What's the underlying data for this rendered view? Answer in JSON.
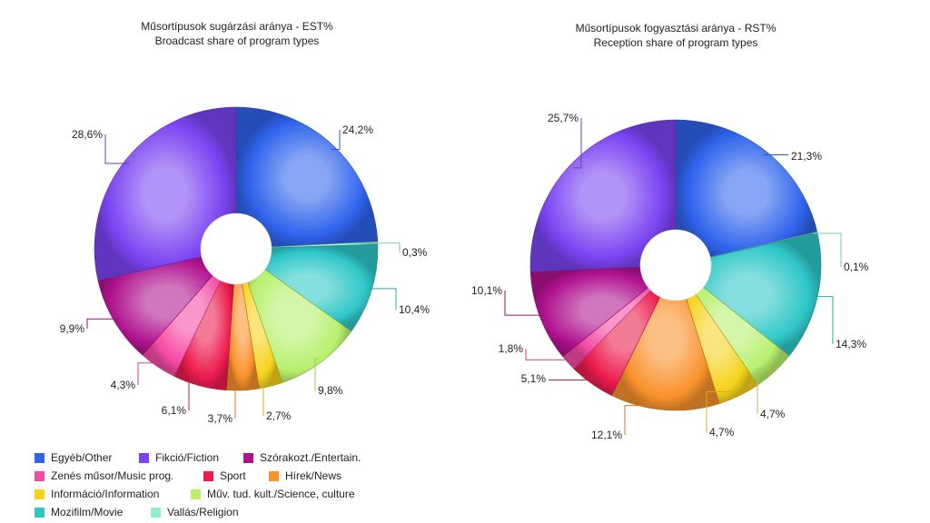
{
  "chart_data": [
    {
      "type": "pie",
      "title": "Műsortípusok sugárzási aránya - EST%",
      "subtitle": "Broadcast share of program types",
      "slices": [
        {
          "label": "Egyéb/Other",
          "value": 24.2,
          "text": "24,2%"
        },
        {
          "label": "Vallás/Religion",
          "value": 0.3,
          "text": "0,3%"
        },
        {
          "label": "Mozifilm/Movie",
          "value": 10.4,
          "text": "10,4%"
        },
        {
          "label": "Műv. tud. kult./Science, culture",
          "value": 9.8,
          "text": "9,8%"
        },
        {
          "label": "Információ/Information",
          "value": 2.7,
          "text": "2,7%"
        },
        {
          "label": "Hírek/News",
          "value": 3.7,
          "text": "3,7%"
        },
        {
          "label": "Sport",
          "value": 6.1,
          "text": "6,1%"
        },
        {
          "label": "Zenés műsor/Music prog.",
          "value": 4.3,
          "text": "4,3%"
        },
        {
          "label": "Szórakozt./Entertain.",
          "value": 9.9,
          "text": "9,9%"
        },
        {
          "label": "Fikció/Fiction",
          "value": 28.6,
          "text": "28,6%"
        }
      ]
    },
    {
      "type": "pie",
      "title": "Műsortípusok fogyasztási aránya - RST%",
      "subtitle": "Reception share of program types",
      "slices": [
        {
          "label": "Egyéb/Other",
          "value": 21.3,
          "text": "21,3%"
        },
        {
          "label": "Vallás/Religion",
          "value": 0.1,
          "text": "0,1%"
        },
        {
          "label": "Mozifilm/Movie",
          "value": 14.3,
          "text": "14,3%"
        },
        {
          "label": "Műv. tud. kult./Science, culture",
          "value": 4.7,
          "text": "4,7%"
        },
        {
          "label": "Információ/Information",
          "value": 4.7,
          "text": "4,7%"
        },
        {
          "label": "Hírek/News",
          "value": 12.1,
          "text": "12,1%"
        },
        {
          "label": "Sport",
          "value": 5.1,
          "text": "5,1%"
        },
        {
          "label": "Zenés műsor/Music prog.",
          "value": 1.8,
          "text": "1,8%"
        },
        {
          "label": "Szórakozt./Entertain.",
          "value": 10.1,
          "text": "10,1%"
        },
        {
          "label": "Fikció/Fiction",
          "value": 25.7,
          "text": "25,7%"
        }
      ]
    }
  ],
  "legend": {
    "rows": [
      [
        {
          "label": "Egyéb/Other",
          "color": "#2f63ec"
        },
        {
          "label": "Fikció/Fiction",
          "color": "#7b44f2"
        },
        {
          "label": "Szórakozt./Entertain.",
          "color": "#b0128f"
        }
      ],
      [
        {
          "label": "Zenés műsor/Music prog.",
          "color": "#f54aa4"
        },
        {
          "label": "Sport",
          "color": "#ec1c4e"
        },
        {
          "label": "Hírek/News",
          "color": "#f9912b"
        }
      ],
      [
        {
          "label": "Információ/Information",
          "color": "#f5d31c"
        },
        {
          "label": "Műv. tud. kult./Science, culture",
          "color": "#b7f06c"
        }
      ],
      [
        {
          "label": "Mozifilm/Movie",
          "color": "#2ec7c8"
        },
        {
          "label": "Vallás/Religion",
          "color": "#8ff0c8"
        }
      ]
    ]
  },
  "colors": {
    "Egyéb/Other": "#2f63ec",
    "Fikció/Fiction": "#7b44f2",
    "Szórakozt./Entertain.": "#b0128f",
    "Zenés műsor/Music prog.": "#f54aa4",
    "Sport": "#ec1c4e",
    "Hírek/News": "#f9912b",
    "Információ/Information": "#f5d31c",
    "Műv. tud. kult./Science, culture": "#b7f06c",
    "Mozifilm/Movie": "#2ec7c8",
    "Vallás/Religion": "#8ff0c8"
  }
}
